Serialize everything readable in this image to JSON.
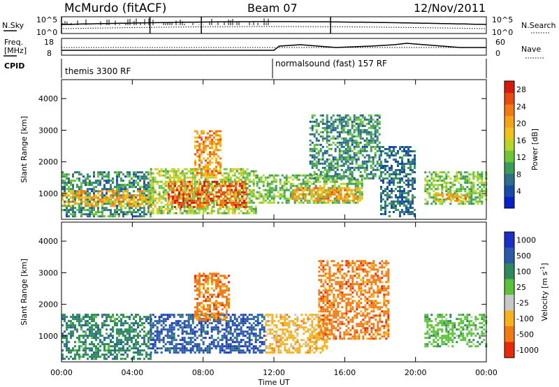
{
  "header": {
    "station": "McMurdo (fitACF)",
    "beam": "Beam 07",
    "date": "12/Nov/2011"
  },
  "noise_panel": {
    "left_label": "N.Sky",
    "right_label": "N.Search",
    "left_ticks": [
      "10^5",
      "10^0"
    ],
    "right_ticks": [
      "10^5",
      "10^0"
    ]
  },
  "freq_panel": {
    "left_label_1": "Freq.",
    "left_label_2": "[MHz]",
    "left_ticks": [
      "18",
      "8"
    ],
    "right_label": "Nave",
    "right_ticks": [
      "60",
      "0"
    ]
  },
  "cpid": {
    "label": "CPID",
    "segments": [
      "themis 3300 RF",
      "normalsound (fast) 157 RF"
    ]
  },
  "chart_data": [
    {
      "type": "heatmap",
      "title": "",
      "xlabel": "",
      "ylabel": "Slant Range [km]",
      "x_ticks": [
        "00:00",
        "04:00",
        "08:00",
        "12:00",
        "16:00",
        "20:00",
        "00:00"
      ],
      "xlim_hours": [
        0,
        24
      ],
      "y_ticks": [
        1000,
        2000,
        3000,
        4000
      ],
      "ylim_km": [
        180,
        4600
      ],
      "colorbar": {
        "label": "Power [dB]",
        "ticks": [
          4,
          8,
          12,
          16,
          20,
          24,
          28
        ],
        "range": [
          0,
          30
        ],
        "colors": [
          "#0a1fcc",
          "#1a4aa8",
          "#2f6e8a",
          "#3c9a5a",
          "#6cc63a",
          "#b8d62a",
          "#f2c21a",
          "#f5a21a",
          "#f07a14",
          "#e84a10",
          "#d81a0a"
        ]
      },
      "regions": [
        {
          "t0": 0.0,
          "t1": 5.0,
          "r0": 300,
          "r1": 1700,
          "value": 8
        },
        {
          "t0": 0.0,
          "t1": 5.0,
          "r0": 600,
          "r1": 1100,
          "value": 20
        },
        {
          "t0": 5.0,
          "t1": 11.0,
          "r0": 400,
          "r1": 1800,
          "value": 14
        },
        {
          "t0": 6.0,
          "t1": 10.5,
          "r0": 600,
          "r1": 1400,
          "value": 26
        },
        {
          "t0": 7.5,
          "t1": 9.0,
          "r0": 1600,
          "r1": 3000,
          "value": 22
        },
        {
          "t0": 11.0,
          "t1": 17.0,
          "r0": 700,
          "r1": 1600,
          "value": 12
        },
        {
          "t0": 13.0,
          "t1": 17.0,
          "r0": 800,
          "r1": 1200,
          "value": 22
        },
        {
          "t0": 14.0,
          "t1": 18.0,
          "r0": 1500,
          "r1": 3500,
          "value": 8
        },
        {
          "t0": 18.0,
          "t1": 20.0,
          "r0": 300,
          "r1": 2500,
          "value": 6
        },
        {
          "t0": 20.5,
          "t1": 24.0,
          "r0": 700,
          "r1": 1700,
          "value": 12
        },
        {
          "t0": 21.0,
          "t1": 23.0,
          "r0": 800,
          "r1": 1000,
          "value": 22
        }
      ]
    },
    {
      "type": "heatmap",
      "title": "",
      "xlabel": "Time UT",
      "ylabel": "Slant Range [km]",
      "x_ticks": [
        "00:00",
        "04:00",
        "08:00",
        "12:00",
        "16:00",
        "20:00",
        "00:00"
      ],
      "xlim_hours": [
        0,
        24
      ],
      "y_ticks": [
        1000,
        2000,
        3000,
        4000
      ],
      "ylim_km": [
        180,
        4600
      ],
      "colorbar": {
        "label": "Velocity [m s^-1]",
        "ticks": [
          "1000",
          "500",
          "100",
          "25",
          "-25",
          "-100",
          "-500",
          "-1000"
        ],
        "colors": [
          "#1a2fc8",
          "#2a5aa8",
          "#2e8a5a",
          "#5cc23a",
          "#c8c8c8",
          "#f5b21a",
          "#f07a14",
          "#e82a0a"
        ]
      },
      "regions": [
        {
          "t0": 0.0,
          "t1": 5.0,
          "r0": 300,
          "r1": 1700,
          "value": 100
        },
        {
          "t0": 5.0,
          "t1": 11.5,
          "r0": 500,
          "r1": 1700,
          "value": 500
        },
        {
          "t0": 7.5,
          "t1": 9.5,
          "r0": 1500,
          "r1": 3000,
          "value": -500
        },
        {
          "t0": 11.5,
          "t1": 15.0,
          "r0": 500,
          "r1": 1700,
          "value": -100
        },
        {
          "t0": 14.5,
          "t1": 18.5,
          "r0": 900,
          "r1": 3400,
          "value": -500
        },
        {
          "t0": 20.5,
          "t1": 24.0,
          "r0": 700,
          "r1": 1700,
          "value": 25
        }
      ]
    }
  ]
}
